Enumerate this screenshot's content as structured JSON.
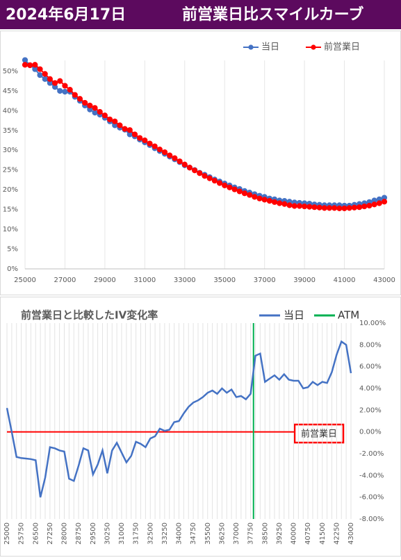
{
  "header": {
    "date": "2024年6月17日",
    "title": "前営業日比スマイルカーブ"
  },
  "chart_data": [
    {
      "type": "line",
      "x": [
        25000,
        25250,
        25500,
        25750,
        26000,
        26250,
        26500,
        26750,
        27000,
        27250,
        27500,
        27750,
        28000,
        28250,
        28500,
        28750,
        29000,
        29250,
        29500,
        29750,
        30000,
        30250,
        30500,
        30750,
        31000,
        31250,
        31500,
        31750,
        32000,
        32250,
        32500,
        32750,
        33000,
        33250,
        33500,
        33750,
        34000,
        34250,
        34500,
        34750,
        35000,
        35250,
        35500,
        35750,
        36000,
        36250,
        36500,
        36750,
        37000,
        37250,
        37500,
        37750,
        38000,
        38250,
        38500,
        38750,
        39000,
        39250,
        39500,
        39750,
        40000,
        40250,
        40500,
        40750,
        41000,
        41250,
        41500,
        41750,
        42000,
        42250,
        42500,
        42750,
        43000
      ],
      "series": [
        {
          "name": "当日",
          "color": "#4472c4",
          "values": [
            52.8,
            51.5,
            50.5,
            49,
            48,
            47,
            46,
            45,
            44.8,
            44.8,
            43.5,
            42.5,
            41.3,
            40.3,
            39.5,
            39,
            38.2,
            37.3,
            36.3,
            35.7,
            35.2,
            34,
            33.5,
            32.7,
            32,
            31.3,
            30.5,
            29.8,
            29.1,
            28.4,
            27.7,
            27,
            26.2,
            25.6,
            25,
            24.3,
            23.8,
            23.2,
            22.6,
            22.1,
            21.6,
            21.1,
            20.6,
            20.2,
            19.7,
            19.3,
            18.9,
            18.5,
            18.2,
            17.8,
            17.6,
            17.3,
            17.2,
            17,
            16.8,
            16.7,
            16.6,
            16.5,
            16.3,
            16.2,
            16.1,
            16.1,
            16.1,
            16.1,
            16,
            16,
            16.2,
            16.4,
            16.6,
            16.9,
            17.3,
            17.6,
            18
          ]
        },
        {
          "name": "前営業日",
          "color": "#ff0000",
          "values": [
            51.6,
            51.5,
            51.6,
            50.5,
            49.3,
            48,
            47,
            47.5,
            46.3,
            45.3,
            44,
            43,
            42,
            41.3,
            40.7,
            39.7,
            38.8,
            37.8,
            37.3,
            36.3,
            35.4,
            35.1,
            34,
            33.1,
            32.5,
            31.7,
            31,
            30.2,
            29.5,
            28.7,
            28,
            27.2,
            26.4,
            25.6,
            24.9,
            24.2,
            23.5,
            22.9,
            22.3,
            21.7,
            21.1,
            20.6,
            20.1,
            19.6,
            19.1,
            18.7,
            18.2,
            17.8,
            17.5,
            17.2,
            16.9,
            16.6,
            16.4,
            16.1,
            15.9,
            15.9,
            15.8,
            15.7,
            15.6,
            15.5,
            15.4,
            15.4,
            15.4,
            15.3,
            15.3,
            15.4,
            15.5,
            15.6,
            15.8,
            16,
            16.3,
            16.6,
            17
          ]
        }
      ],
      "xlim": [
        25000,
        43000
      ],
      "xticks": [
        25000,
        27000,
        29000,
        31000,
        33000,
        35000,
        37000,
        39000,
        41000,
        43000
      ],
      "ylim": [
        0,
        52
      ],
      "yticks": [
        {
          "value": 0,
          "label": "0%"
        },
        {
          "value": 5,
          "label": "5%"
        },
        {
          "value": 10,
          "label": "10%"
        },
        {
          "value": 15,
          "label": "15%"
        },
        {
          "value": 20,
          "label": "20%"
        },
        {
          "value": 25,
          "label": "25%"
        },
        {
          "value": 30,
          "label": "30%"
        },
        {
          "value": 35,
          "label": "35%"
        },
        {
          "value": 40,
          "label": "40%"
        },
        {
          "value": 45,
          "label": "45%"
        },
        {
          "value": 50,
          "label": "50%"
        }
      ],
      "grid": true,
      "legend": "top-right"
    },
    {
      "type": "line",
      "title": "前営業日と比較したIV変化率",
      "x": [
        25000,
        25250,
        25500,
        25750,
        26000,
        26250,
        26500,
        26750,
        27000,
        27250,
        27500,
        27750,
        28000,
        28250,
        28500,
        28750,
        29000,
        29250,
        29500,
        29750,
        30000,
        30250,
        30500,
        30750,
        31000,
        31250,
        31500,
        31750,
        32000,
        32250,
        32500,
        32750,
        33000,
        33250,
        33500,
        33750,
        34000,
        34250,
        34500,
        34750,
        35000,
        35250,
        35500,
        35750,
        36000,
        36250,
        36500,
        36750,
        37000,
        37250,
        37500,
        37750,
        38000,
        38250,
        38500,
        38750,
        39000,
        39250,
        39500,
        39750,
        40000,
        40250,
        40500,
        40750,
        41000,
        41250,
        41500,
        41750,
        42000,
        42250,
        42500,
        42750,
        43000
      ],
      "series": [
        {
          "name": "当日",
          "color": "#4472c4",
          "axis": "y2",
          "values": [
            2.2,
            0.0,
            -2.3,
            -2.4,
            -2.45,
            -2.5,
            -2.6,
            -6.0,
            -4.2,
            -1.4,
            -1.5,
            -1.7,
            -1.8,
            -4.3,
            -4.5,
            -3.1,
            -1.5,
            -1.7,
            -3.9,
            -3.0,
            -1.7,
            -3.8,
            -1.7,
            -1.0,
            -1.9,
            -2.8,
            -2.2,
            -0.9,
            -1.1,
            -1.4,
            -0.6,
            -0.4,
            0.3,
            0.1,
            0.2,
            0.9,
            1.0,
            1.7,
            2.3,
            2.7,
            2.9,
            3.2,
            3.6,
            3.8,
            3.5,
            4.0,
            3.6,
            3.9,
            3.2,
            3.3,
            3.0,
            3.5,
            7.0,
            7.2,
            4.6,
            4.9,
            5.2,
            4.8,
            5.3,
            4.8,
            4.7,
            4.7,
            4.0,
            4.1,
            4.6,
            4.3,
            4.6,
            4.5,
            5.5,
            7.1,
            8.3,
            8.0,
            5.4
          ]
        }
      ],
      "atm": {
        "name": "ATM",
        "color": "#00b050",
        "x": 37900
      },
      "reference": {
        "label": "前営業日",
        "value": 0,
        "color": "#ff0000"
      },
      "xlim": [
        25000,
        43000
      ],
      "xticks": [
        25000,
        25750,
        26500,
        27250,
        28000,
        28750,
        29500,
        30250,
        31000,
        31750,
        32500,
        33250,
        34000,
        34750,
        35500,
        36250,
        37000,
        37750,
        38500,
        39250,
        40000,
        40750,
        41500,
        42250,
        43000
      ],
      "y2lim": [
        -8,
        10
      ],
      "y2ticks": [
        {
          "value": 10,
          "label": "10.00%"
        },
        {
          "value": 8,
          "label": "8.00%"
        },
        {
          "value": 6,
          "label": "6.00%"
        },
        {
          "value": 4,
          "label": "4.00%"
        },
        {
          "value": 2,
          "label": "2.00%"
        },
        {
          "value": 0,
          "label": "0.00%"
        },
        {
          "value": -2,
          "label": "-2.00%"
        },
        {
          "value": -4,
          "label": "-4.00%"
        },
        {
          "value": -6,
          "label": "-6.00%"
        },
        {
          "value": -8,
          "label": "-8.00%"
        }
      ],
      "grid": true,
      "legend": "top-right"
    }
  ]
}
